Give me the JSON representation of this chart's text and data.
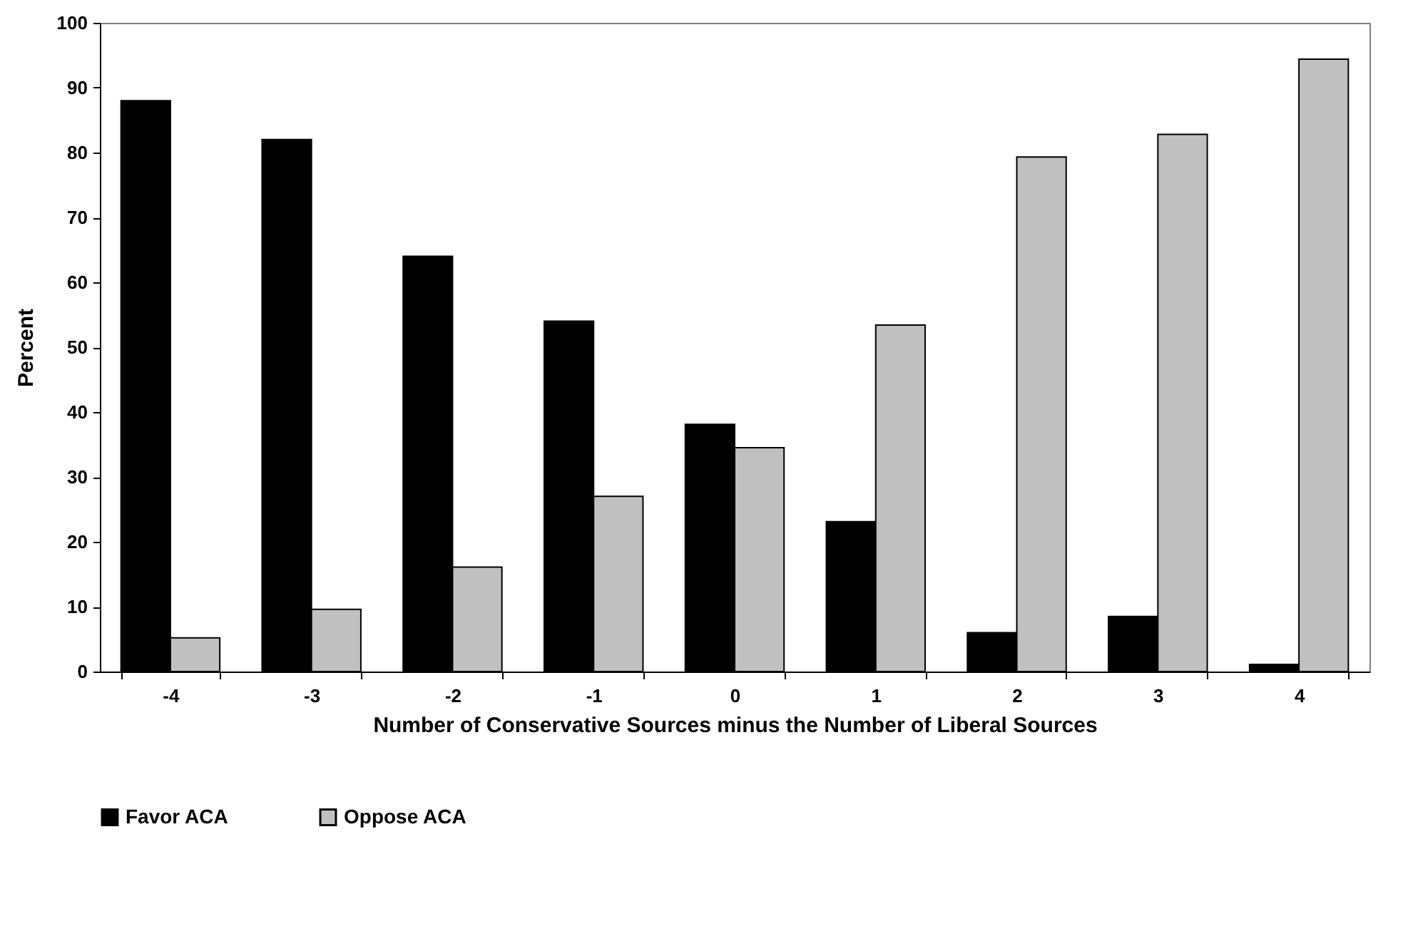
{
  "chart_data": {
    "type": "bar",
    "xlabel": "Number of Conservative Sources minus the Number of Liberal Sources",
    "ylabel": "Percent",
    "categories": [
      "-4",
      "-3",
      "-2",
      "-1",
      "0",
      "1",
      "2",
      "3",
      "4"
    ],
    "series": [
      {
        "name": "Favor ACA",
        "color": "#000000",
        "values": [
          88,
          82,
          64,
          54,
          38.1,
          23.1,
          6,
          8.5,
          1.1
        ]
      },
      {
        "name": "Oppose ACA",
        "color": "#c0c0c0",
        "values": [
          5.2,
          9.6,
          16.1,
          27,
          34.5,
          53.4,
          79.3,
          82.8,
          94.4
        ]
      }
    ],
    "ylim": [
      0,
      100
    ],
    "yticks": [
      0,
      10,
      20,
      30,
      40,
      50,
      60,
      70,
      80,
      90,
      100
    ],
    "grid": false,
    "legend": "bottom"
  }
}
